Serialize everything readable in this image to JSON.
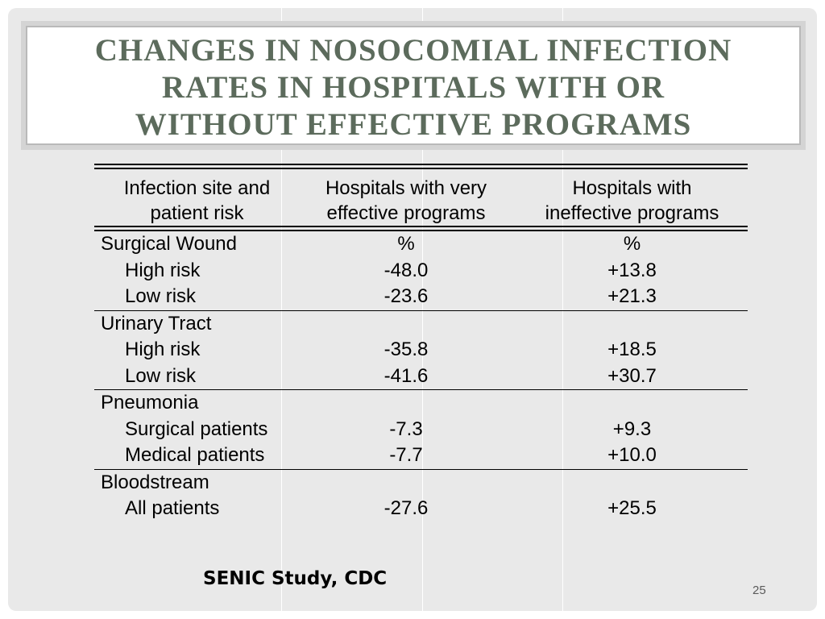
{
  "title": {
    "lines": [
      "CHANGES IN NOSOCOMIAL INFECTION",
      "RATES IN HOSPITALS WITH OR",
      "WITHOUT EFFECTIVE PROGRAMS"
    ]
  },
  "table": {
    "headers": [
      [
        "Infection site and",
        "patient risk"
      ],
      [
        "Hospitals with very",
        "effective programs"
      ],
      [
        "Hospitals with",
        "ineffective programs"
      ]
    ],
    "groups": [
      {
        "name": "Surgical Wound",
        "name_effective": "%",
        "name_ineffective": "%",
        "rows": [
          {
            "label": "High risk",
            "effective": "-48.0",
            "ineffective": "+13.8"
          },
          {
            "label": "Low risk",
            "effective": "-23.6",
            "ineffective": "+21.3"
          }
        ]
      },
      {
        "name": "Urinary Tract",
        "name_effective": "",
        "name_ineffective": "",
        "rows": [
          {
            "label": "High risk",
            "effective": "-35.8",
            "ineffective": "+18.5"
          },
          {
            "label": "Low risk",
            "effective": "-41.6",
            "ineffective": "+30.7"
          }
        ]
      },
      {
        "name": "Pneumonia",
        "name_effective": "",
        "name_ineffective": "",
        "rows": [
          {
            "label": "Surgical patients",
            "effective": "-7.3",
            "ineffective": "+9.3"
          },
          {
            "label": "Medical patients",
            "effective": "-7.7",
            "ineffective": "+10.0"
          }
        ]
      },
      {
        "name": "Bloodstream",
        "name_effective": "",
        "name_ineffective": "",
        "rows": [
          {
            "label": "All patients",
            "effective": "-27.6",
            "ineffective": "+25.5"
          }
        ]
      }
    ]
  },
  "footer": {
    "source": "SENIC Study, CDC"
  },
  "page_number": "25"
}
